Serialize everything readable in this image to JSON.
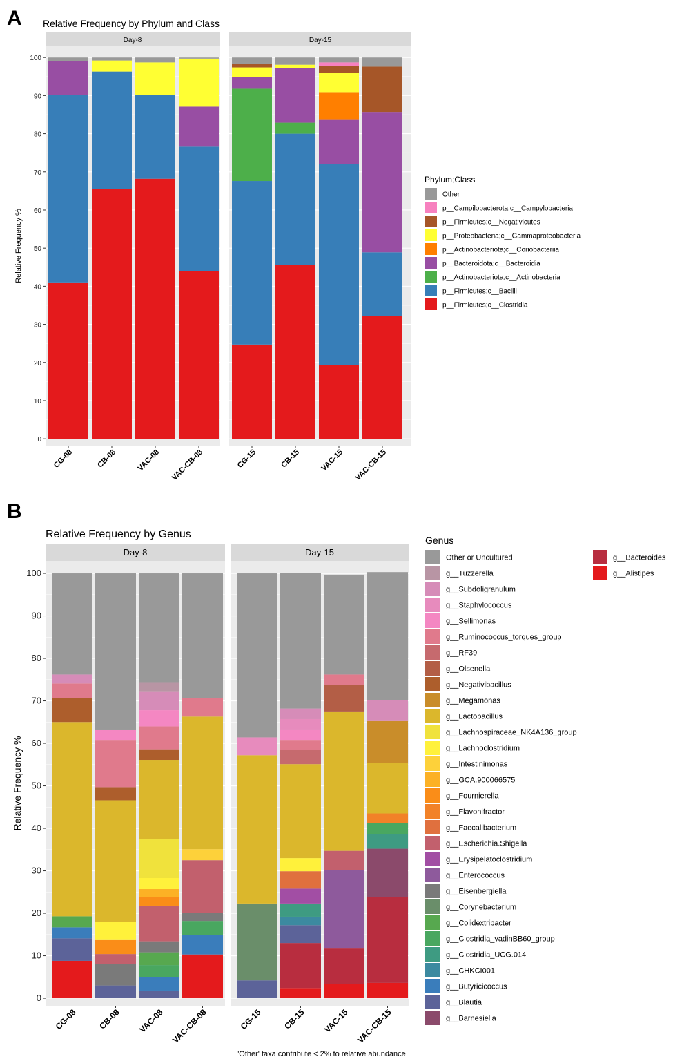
{
  "chart_data": [
    {
      "panel": "A",
      "type": "bar",
      "stacked": true,
      "title": "Relative Frequency by Phylum and Class",
      "ylabel": "Relative Frequency %",
      "xlabel": "",
      "ylim": [
        0,
        100
      ],
      "yticks": [
        0,
        10,
        20,
        30,
        40,
        50,
        60,
        70,
        80,
        90,
        100
      ],
      "grid": true,
      "legend_title": "Phylum;Class",
      "legend_position": "right",
      "facets": [
        {
          "label": "Day-8",
          "categories": [
            "CG-08",
            "CB-08",
            "VAC-08",
            "VAC-CB-08"
          ]
        },
        {
          "label": "Day-15",
          "categories": [
            "CG-15",
            "CB-15",
            "VAC-15",
            "VAC-CB-15"
          ]
        }
      ],
      "series": [
        {
          "name": "p__Firmicutes;c__Clostridia",
          "color": "#e41a1c",
          "values": [
            41.0,
            65.5,
            68.2,
            44.0,
            24.7,
            45.6,
            19.4,
            32.2
          ]
        },
        {
          "name": "p__Firmicutes;c__Bacilli",
          "color": "#377eb8",
          "values": [
            49.2,
            30.8,
            21.9,
            32.6,
            42.9,
            34.4,
            52.6,
            16.7
          ]
        },
        {
          "name": "p__Actinobacteriota;c__Actinobacteria",
          "color": "#4daf4a",
          "values": [
            0,
            0,
            0,
            0,
            24.2,
            2.9,
            0,
            0
          ]
        },
        {
          "name": "p__Bacteroidota;c__Bacteroidia",
          "color": "#984ea3",
          "values": [
            8.9,
            0,
            0,
            10.5,
            3.1,
            14.3,
            11.8,
            36.8
          ]
        },
        {
          "name": "p__Actinobacteriota;c__Coriobacteriia",
          "color": "#ff7f00",
          "values": [
            0,
            0,
            0,
            0,
            0,
            0,
            7.1,
            0
          ]
        },
        {
          "name": "p__Proteobacteria;c__Gammaproteobacteria",
          "color": "#ffff33",
          "values": [
            0,
            2.9,
            8.6,
            12.6,
            2.5,
            0.9,
            5.1,
            0
          ]
        },
        {
          "name": "p__Firmicutes;c__Negativicutes",
          "color": "#a65628",
          "values": [
            0,
            0,
            0,
            0,
            1.0,
            0,
            1.7,
            11.9
          ]
        },
        {
          "name": "p__Campilobacterota;c__Campylobacteria",
          "color": "#f781bf",
          "values": [
            0,
            0,
            0,
            0,
            0,
            0,
            1.0,
            0
          ]
        },
        {
          "name": "Other",
          "color": "#999999",
          "values": [
            0.9,
            0.8,
            1.3,
            0.3,
            1.6,
            1.9,
            1.3,
            2.4
          ]
        }
      ]
    },
    {
      "panel": "B",
      "type": "bar",
      "stacked": true,
      "title": "Relative Frequency by Genus",
      "ylabel": "Relative Frequency %",
      "xlabel": "",
      "ylim": [
        0,
        100
      ],
      "yticks": [
        0,
        10,
        20,
        30,
        40,
        50,
        60,
        70,
        80,
        90,
        100
      ],
      "grid": true,
      "legend_title": "Genus",
      "legend_position": "right",
      "footnote": "'Other' taxa contribute < 2% to relative abundance",
      "facets": [
        {
          "label": "Day-8",
          "categories": [
            "CG-08",
            "CB-08",
            "VAC-08",
            "VAC-CB-08"
          ]
        },
        {
          "label": "Day-15",
          "categories": [
            "CG-15",
            "CB-15",
            "VAC-15",
            "VAC-CB-15"
          ]
        }
      ],
      "series": [
        {
          "name": "g__Alistipes",
          "color": "#e41a1c",
          "values": [
            8.8,
            0,
            0,
            10.3,
            0,
            2.4,
            3.3,
            3.6
          ]
        },
        {
          "name": "g__Bacteroides",
          "color": "#b82d3f",
          "values": [
            0,
            0,
            0,
            0,
            0,
            10.6,
            8.4,
            20.3
          ]
        },
        {
          "name": "g__Barnesiella",
          "color": "#8b4a6b",
          "values": [
            0,
            0,
            0,
            0,
            0,
            0,
            0,
            11.3
          ]
        },
        {
          "name": "g__Blautia",
          "color": "#5c6399",
          "values": [
            5.3,
            3.0,
            1.8,
            0,
            4.2,
            4.2,
            0,
            0
          ]
        },
        {
          "name": "g__Butyricicoccus",
          "color": "#3a7dbb",
          "values": [
            2.6,
            0,
            3.2,
            4.6,
            0,
            0,
            0,
            0
          ]
        },
        {
          "name": "g__CHKCI001",
          "color": "#3c8aa0",
          "values": [
            0,
            0,
            0,
            0,
            0,
            2.0,
            0,
            0
          ]
        },
        {
          "name": "g__Clostridia_UCG.014",
          "color": "#3e9b82",
          "values": [
            0,
            0,
            0,
            0,
            0,
            3.1,
            0,
            3.4
          ]
        },
        {
          "name": "g__Clostridia_vadinBB60_group",
          "color": "#49a760",
          "values": [
            0,
            0,
            2.8,
            3.3,
            0,
            0,
            0,
            2.7
          ]
        },
        {
          "name": "g__Colidextribacter",
          "color": "#57a84f",
          "values": [
            2.6,
            0,
            3.0,
            0,
            0,
            0,
            0,
            0
          ]
        },
        {
          "name": "g__Corynebacterium",
          "color": "#6a8e6a",
          "values": [
            0,
            0,
            0,
            0,
            18.1,
            0,
            0,
            0
          ]
        },
        {
          "name": "g__Eisenbergiella",
          "color": "#7a7a7a",
          "values": [
            0,
            5.0,
            2.6,
            1.9,
            0,
            0,
            0,
            0
          ]
        },
        {
          "name": "g__Enterococcus",
          "color": "#8e5a9c",
          "values": [
            0,
            0,
            0,
            0,
            0,
            0,
            18.4,
            0
          ]
        },
        {
          "name": "g__Erysipelatoclostridium",
          "color": "#a24ea4",
          "values": [
            0,
            0,
            0,
            0,
            0,
            3.5,
            0,
            0
          ]
        },
        {
          "name": "g__Escherichia.Shigella",
          "color": "#c2606d",
          "values": [
            0,
            2.4,
            8.4,
            12.4,
            0,
            0,
            4.6,
            0
          ]
        },
        {
          "name": "g__Faecalibacterium",
          "color": "#e0703e",
          "values": [
            0,
            0,
            0,
            0,
            0,
            4.1,
            0,
            0
          ]
        },
        {
          "name": "g__Flavonifractor",
          "color": "#f28228",
          "values": [
            0,
            0,
            0,
            0,
            0,
            0,
            0,
            2.2
          ]
        },
        {
          "name": "g__Fournierella",
          "color": "#fa8d18",
          "values": [
            0,
            3.3,
            2.0,
            0,
            0,
            0,
            0,
            0
          ]
        },
        {
          "name": "g__GCA.900066575",
          "color": "#fcb125",
          "values": [
            0,
            0,
            1.9,
            0,
            0,
            0,
            0,
            0
          ]
        },
        {
          "name": "g__Intestinimonas",
          "color": "#fdd13a",
          "values": [
            0,
            0,
            0,
            2.6,
            0,
            0,
            0,
            0
          ]
        },
        {
          "name": "g__Lachnoclostridium",
          "color": "#fff13b",
          "values": [
            0,
            4.3,
            2.6,
            0,
            0,
            3.1,
            0,
            0
          ]
        },
        {
          "name": "g__Lachnospiraceae_NK4A136_group",
          "color": "#f0e23c",
          "values": [
            0,
            0,
            9.2,
            0,
            0,
            0,
            0,
            0
          ]
        },
        {
          "name": "g__Lactobacillus",
          "color": "#dbb72c",
          "values": [
            45.7,
            28.6,
            18.6,
            31.2,
            34.9,
            22.1,
            32.8,
            11.8
          ]
        },
        {
          "name": "g__Megamonas",
          "color": "#c98d2a",
          "values": [
            0,
            0,
            0,
            0,
            0,
            0,
            0,
            10.1
          ]
        },
        {
          "name": "g__Negativibacillus",
          "color": "#ad5e2c",
          "values": [
            5.7,
            3.1,
            2.5,
            0,
            0,
            0,
            0,
            0
          ]
        },
        {
          "name": "g__Olsenella",
          "color": "#b35e46",
          "values": [
            0,
            0,
            0,
            0,
            0,
            0,
            6.2,
            0
          ]
        },
        {
          "name": "g__RF39",
          "color": "#c66a6e",
          "values": [
            0,
            0,
            0,
            0,
            0,
            3.4,
            0,
            0
          ]
        },
        {
          "name": "g__Ruminococcus_torques_group",
          "color": "#e07a8c",
          "values": [
            3.4,
            11.1,
            5.4,
            4.3,
            0,
            2.3,
            2.5,
            0
          ]
        },
        {
          "name": "g__Sellimonas",
          "color": "#f487c2",
          "values": [
            0,
            2.3,
            3.8,
            0,
            0,
            2.3,
            0,
            0
          ]
        },
        {
          "name": "g__Staphylococcus",
          "color": "#e78bbd",
          "values": [
            0,
            0,
            0,
            0,
            4.2,
            2.6,
            0,
            0
          ]
        },
        {
          "name": "g__Subdoligranulum",
          "color": "#d68cb8",
          "values": [
            2.1,
            0,
            4.3,
            0,
            0,
            2.5,
            0,
            4.8
          ]
        },
        {
          "name": "g__Tuzzerella",
          "color": "#b895a4",
          "values": [
            0,
            0,
            2.3,
            0,
            0,
            0,
            0,
            0
          ]
        },
        {
          "name": "Other or Uncultured",
          "color": "#999999",
          "values": [
            23.8,
            36.9,
            25.6,
            29.4,
            38.6,
            31.9,
            23.5,
            30.1
          ]
        }
      ],
      "legend_order": [
        "Other or Uncultured",
        "g__Tuzzerella",
        "g__Subdoligranulum",
        "g__Staphylococcus",
        "g__Sellimonas",
        "g__Ruminococcus_torques_group",
        "g__RF39",
        "g__Olsenella",
        "g__Negativibacillus",
        "g__Megamonas",
        "g__Lactobacillus",
        "g__Lachnospiraceae_NK4A136_group",
        "g__Lachnoclostridium",
        "g__Intestinimonas",
        "g__GCA.900066575",
        "g__Fournierella",
        "g__Flavonifractor",
        "g__Faecalibacterium",
        "g__Escherichia.Shigella",
        "g__Erysipelatoclostridium",
        "g__Enterococcus",
        "g__Eisenbergiella",
        "g__Corynebacterium",
        "g__Colidextribacter",
        "g__Clostridia_vadinBB60_group",
        "g__Clostridia_UCG.014",
        "g__CHKCI001",
        "g__Butyricicoccus",
        "g__Blautia",
        "g__Barnesiella",
        "g__Bacteroides",
        "g__Alistipes"
      ]
    }
  ],
  "legendA_order": [
    "Other",
    "p__Campilobacterota;c__Campylobacteria",
    "p__Firmicutes;c__Negativicutes",
    "p__Proteobacteria;c__Gammaproteobacteria",
    "p__Actinobacteriota;c__Coriobacteriia",
    "p__Bacteroidota;c__Bacteroidia",
    "p__Actinobacteriota;c__Actinobacteria",
    "p__Firmicutes;c__Bacilli",
    "p__Firmicutes;c__Clostridia"
  ]
}
